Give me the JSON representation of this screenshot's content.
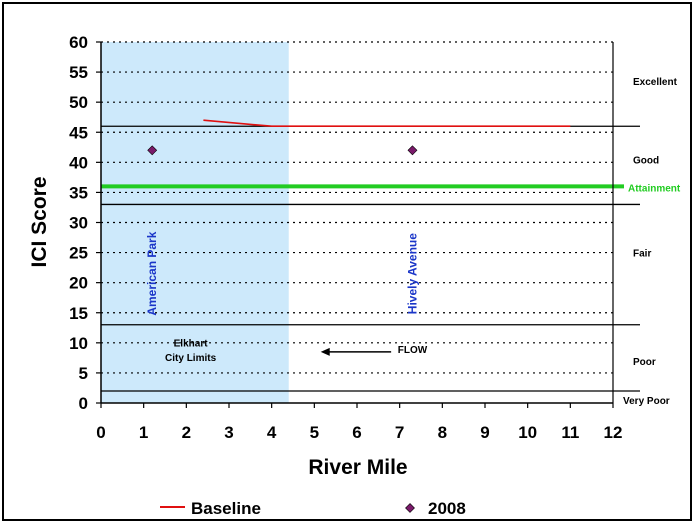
{
  "chart_data": {
    "type": "line+scatter",
    "xlabel": "River Mile",
    "ylabel": "ICI Score",
    "xlim": [
      0,
      12
    ],
    "ylim": [
      0,
      60
    ],
    "x_ticks": [
      "0",
      "1",
      "2",
      "3",
      "4",
      "5",
      "6",
      "7",
      "8",
      "9",
      "10",
      "11",
      "12"
    ],
    "y_ticks": [
      "0",
      "5",
      "10",
      "15",
      "20",
      "25",
      "30",
      "35",
      "40",
      "45",
      "50",
      "55",
      "60"
    ],
    "shaded_region": {
      "x_from": 0,
      "x_to": 4.4,
      "color": "#cde9fb"
    },
    "gridlines": {
      "style": "dotted",
      "y_values": [
        5,
        10,
        15,
        20,
        25,
        30,
        35,
        40,
        45,
        50,
        55,
        60
      ]
    },
    "thresholds": [
      {
        "y": 2,
        "color": "#000000"
      },
      {
        "y": 13,
        "color": "#000000"
      },
      {
        "y": 33,
        "color": "#000000"
      },
      {
        "y": 46,
        "color": "#000000"
      },
      {
        "y": 36,
        "color": "#22cc22",
        "label": "Attainment"
      }
    ],
    "zones": [
      {
        "label": "Excellent",
        "y": 53.5
      },
      {
        "label": "Good",
        "y": 40.5
      },
      {
        "label": "Fair",
        "y": 25
      },
      {
        "label": "Poor",
        "y": 7
      },
      {
        "label": "Very Poor",
        "y": 0.5
      }
    ],
    "series": [
      {
        "name": "Baseline",
        "kind": "line",
        "color": "#e01010",
        "x": [
          2.4,
          4.0,
          11.0
        ],
        "y": [
          47,
          46,
          46
        ]
      },
      {
        "name": "2008",
        "kind": "scatter",
        "color": "#7a1a6a",
        "x": [
          1.2,
          7.3
        ],
        "y": [
          42,
          42
        ]
      }
    ],
    "site_labels": [
      {
        "text": "American Park",
        "x": 1.2,
        "y": 21.5
      },
      {
        "text": "Hively Avenue",
        "x": 7.3,
        "y": 21.5
      }
    ],
    "annotations": [
      {
        "text": "Elkhart",
        "x": 2.1,
        "y": 9.4
      },
      {
        "text": "City Limits",
        "x": 2.1,
        "y": 7.0
      },
      {
        "text": "FLOW",
        "x": 7.3,
        "y": 8.3
      }
    ],
    "flow_arrow": {
      "from_x": 6.8,
      "to_x": 5.15,
      "y": 8.5
    },
    "legend": {
      "position": "bottom",
      "items": [
        "Baseline",
        "2008"
      ]
    }
  }
}
